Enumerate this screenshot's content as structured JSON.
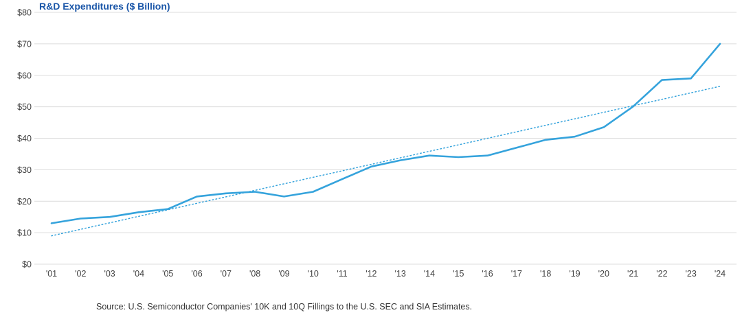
{
  "title": "R&D Expenditures ($ Billion)",
  "source": "Source: U.S. Semiconductor Companies' 10K and 10Q Fillings to the U.S. SEC and SIA Estimates.",
  "colors": {
    "title": "#1A56A8",
    "line": "#35A3DC",
    "trend": "#35A3DC",
    "grid": "#DCDCDC",
    "axis_text": "#404040"
  },
  "chart_data": {
    "type": "line",
    "title": "R&D Expenditures ($ Billion)",
    "categories": [
      "'01",
      "'02",
      "'03",
      "'04",
      "'05",
      "'06",
      "'07",
      "'08",
      "'09",
      "'10",
      "'11",
      "'12",
      "'13",
      "'14",
      "'15",
      "'16",
      "'17",
      "'18",
      "'19",
      "'20",
      "'21",
      "'22",
      "'23",
      "'24"
    ],
    "series": [
      {
        "name": "R&D Expenditures ($ Billion)",
        "style": "solid",
        "values": [
          13,
          14.5,
          15,
          16.5,
          17.5,
          21.5,
          22.5,
          23,
          21.5,
          23,
          27,
          31,
          33,
          34.5,
          34,
          34.5,
          37,
          39.5,
          40.5,
          43.5,
          50,
          58.5,
          59,
          70
        ]
      },
      {
        "name": "Linear trend",
        "style": "dotted",
        "values": [
          9,
          11.07,
          13.13,
          15.2,
          17.26,
          19.33,
          21.39,
          23.46,
          25.52,
          27.59,
          29.65,
          31.72,
          33.78,
          35.85,
          37.91,
          39.98,
          42.04,
          44.11,
          46.17,
          48.24,
          50.3,
          52.37,
          54.43,
          56.5
        ]
      }
    ],
    "xlabel": "",
    "ylabel": "",
    "ylim": [
      0,
      80
    ],
    "ytick_step": 10,
    "ytick_prefix": "$",
    "grid": true,
    "legend": false
  }
}
